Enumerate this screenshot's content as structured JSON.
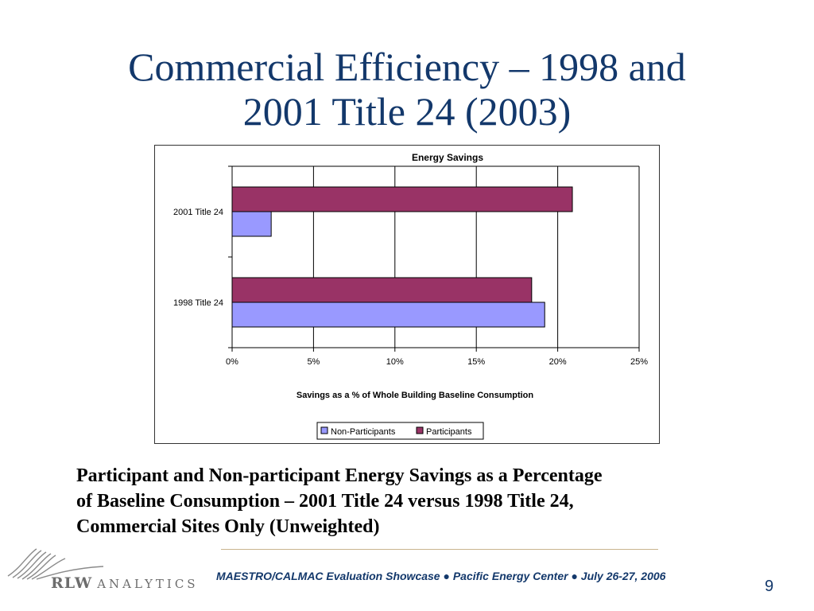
{
  "slide": {
    "title_line1": "Commercial Efficiency – 1998 and",
    "title_line2": "2001 Title 24 (2003)",
    "caption_line1": "Participant and Non-participant Energy Savings as a Percentage",
    "caption_line2": "of Baseline Consumption – 2001 Title 24 versus 1998 Title 24,",
    "caption_line3": "Commercial Sites Only (Unweighted)",
    "footer": "MAESTRO/CALMAC Evaluation Showcase ●  Pacific Energy Center   ●   July 26-27, 2006",
    "page_number": "9",
    "logo_text_1": "RLW",
    "logo_text_2": "ANALYTICS"
  },
  "chart_data": {
    "type": "bar",
    "orientation": "horizontal",
    "title": "Energy Savings",
    "xlabel": "Savings as a % of Whole Building Baseline Consumption",
    "ylabel": "",
    "categories": [
      "2001 Title 24",
      "1998 Title 24"
    ],
    "series": [
      {
        "name": "Participants",
        "values": [
          0.209,
          0.184
        ],
        "color": "#993366"
      },
      {
        "name": "Non-Participants",
        "values": [
          0.024,
          0.192
        ],
        "color": "#9999ff"
      }
    ],
    "xlim": [
      0,
      0.25
    ],
    "xticks": [
      0,
      0.05,
      0.1,
      0.15,
      0.2,
      0.25
    ],
    "xtick_labels": [
      "0%",
      "5%",
      "10%",
      "15%",
      "20%",
      "25%"
    ],
    "grid": "vertical",
    "legend": {
      "position": "bottom",
      "entries": [
        "Non-Participants",
        "Participants"
      ]
    }
  }
}
